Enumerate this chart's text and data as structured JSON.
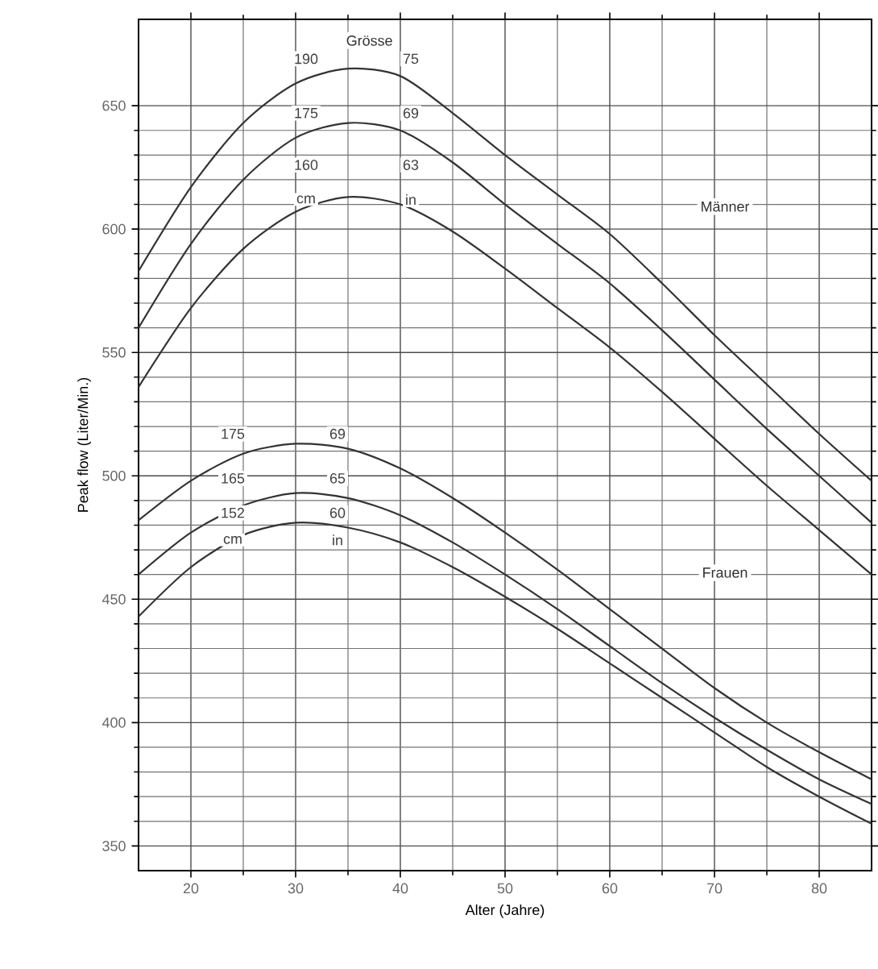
{
  "chart_data": {
    "type": "line",
    "xlabel": "Alter (Jahre)",
    "ylabel": "Peak flow (Liter/Min.)",
    "x": [
      15,
      20,
      25,
      30,
      35,
      40,
      45,
      50,
      55,
      60,
      65,
      70,
      75,
      80,
      85
    ],
    "xlim": [
      15,
      85
    ],
    "ylim": [
      340,
      685
    ],
    "xticks": [
      20,
      30,
      40,
      50,
      60,
      70,
      80
    ],
    "yticks": [
      350,
      400,
      450,
      500,
      550,
      600,
      650
    ],
    "grid": true,
    "marker": "none",
    "line_style": "solid",
    "series": [
      {
        "color": "#333333",
        "values": [
          583,
          617,
          643,
          659,
          665,
          662,
          647,
          630,
          614,
          598,
          578,
          557,
          537,
          517,
          498
        ]
      },
      {
        "color": "#333333",
        "values": [
          560,
          594,
          620,
          637,
          643,
          640,
          627,
          610,
          594,
          578,
          559,
          539,
          519,
          500,
          481
        ]
      },
      {
        "color": "#333333",
        "values": [
          536,
          568,
          592,
          607,
          613,
          610,
          599,
          584,
          568,
          552,
          534,
          515,
          496,
          478,
          460
        ]
      },
      {
        "color": "#333333",
        "values": [
          482,
          498,
          509,
          513,
          511,
          503,
          491,
          477,
          462,
          446,
          430,
          414,
          400,
          388,
          377
        ]
      },
      {
        "color": "#333333",
        "values": [
          460,
          477,
          488,
          493,
          491,
          484,
          473,
          460,
          446,
          431,
          416,
          402,
          389,
          377,
          367
        ]
      },
      {
        "color": "#333333",
        "values": [
          443,
          463,
          476,
          481,
          479,
          473,
          463,
          451,
          438,
          424,
          410,
          396,
          382,
          370,
          359
        ]
      }
    ],
    "annotations": [
      "Grösse",
      {
        "text": "190",
        "x": 31,
        "y": 669
      },
      {
        "text": "75",
        "x": 41,
        "y": 669
      },
      {
        "text": "175",
        "x": 31,
        "y": 647
      },
      {
        "text": "69",
        "x": 41,
        "y": 647
      },
      {
        "text": "160",
        "x": 31,
        "y": 626
      },
      {
        "text": "63",
        "x": 41,
        "y": 626
      },
      {
        "text": "cm",
        "x": 31,
        "y": 612
      },
      {
        "text": "in",
        "x": 41,
        "y": 612
      },
      "Männer",
      {
        "text": "175",
        "x": 24,
        "y": 517
      },
      {
        "text": "69",
        "x": 34,
        "y": 517
      },
      {
        "text": "165",
        "x": 24,
        "y": 499
      },
      {
        "text": "65",
        "x": 34,
        "y": 499
      },
      {
        "text": "152",
        "x": 24,
        "y": 485
      },
      {
        "text": "60",
        "x": 34,
        "y": 485
      },
      {
        "text": "cm",
        "x": 24,
        "y": 474
      },
      {
        "text": "in",
        "x": 34,
        "y": 474
      },
      "Frauen"
    ]
  }
}
